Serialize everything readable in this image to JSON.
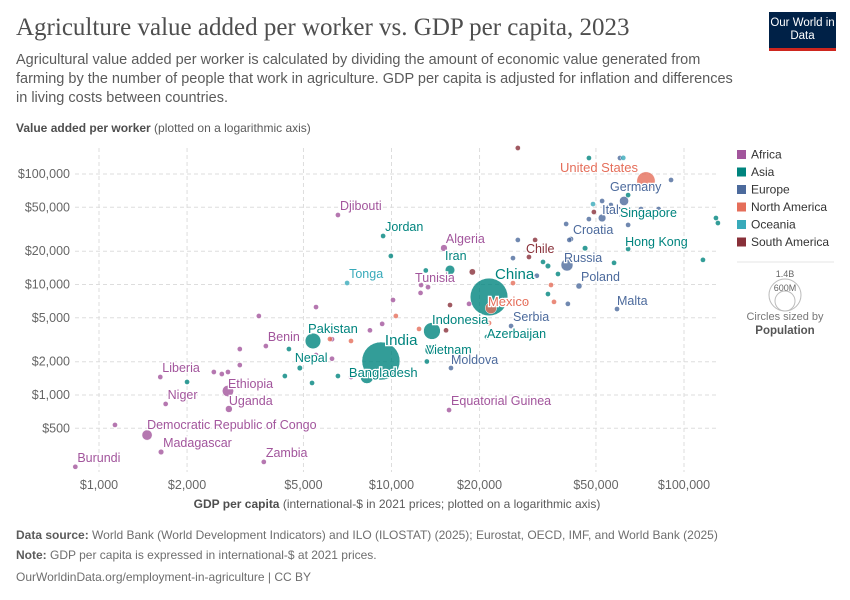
{
  "header": {
    "title": "Agriculture value added per worker vs. GDP per capita, 2023",
    "subtitle": "Agricultural value added per worker is calculated by dividing the amount of economic value generated from farming by the number of people that work in agriculture. GDP per capita is adjusted for inflation and differences in living costs between countries.",
    "logo": "Our World in Data"
  },
  "chart_data": {
    "type": "scatter",
    "title": "Agriculture value added per worker vs. GDP per capita, 2023",
    "ylabel_bold": "Value added per worker",
    "ylabel_rest": " (plotted on a logarithmic axis)",
    "xlabel_bold": "GDP per capita",
    "xlabel_rest": " (international-$ in 2021 prices; plotted on a logarithmic axis)",
    "x_scale": "log",
    "y_scale": "log",
    "xlim": [
      800,
      135000
    ],
    "ylim": [
      190,
      180000
    ],
    "grid": true,
    "x_ticks": [
      {
        "v": 1000,
        "label": "$1,000"
      },
      {
        "v": 2000,
        "label": "$2,000"
      },
      {
        "v": 5000,
        "label": "$5,000"
      },
      {
        "v": 10000,
        "label": "$10,000"
      },
      {
        "v": 20000,
        "label": "$20,000"
      },
      {
        "v": 50000,
        "label": "$50,000"
      },
      {
        "v": 100000,
        "label": "$100,000"
      }
    ],
    "y_ticks": [
      {
        "v": 500,
        "label": "$500"
      },
      {
        "v": 1000,
        "label": "$1,000"
      },
      {
        "v": 2000,
        "label": "$2,000"
      },
      {
        "v": 5000,
        "label": "$5,000"
      },
      {
        "v": 10000,
        "label": "$10,000"
      },
      {
        "v": 20000,
        "label": "$20,000"
      },
      {
        "v": 50000,
        "label": "$50,000"
      },
      {
        "v": 100000,
        "label": "$100,000"
      }
    ],
    "legend_position": "right",
    "regions": [
      {
        "name": "Africa",
        "color": "#a2559c"
      },
      {
        "name": "Asia",
        "color": "#00847e"
      },
      {
        "name": "Europe",
        "color": "#4c6a9c"
      },
      {
        "name": "North America",
        "color": "#e56e5a"
      },
      {
        "name": "Oceania",
        "color": "#38aaba"
      },
      {
        "name": "South America",
        "color": "#883039"
      }
    ],
    "size_legend": {
      "title": "Circles sized by",
      "variable": "Population",
      "large": "1.4B",
      "small": "600M"
    },
    "points": [
      {
        "label": "Burundi",
        "region": "Africa",
        "x": 830,
        "y": 224,
        "pop": 13
      },
      {
        "label": "Madagascar",
        "region": "Africa",
        "x": 1630,
        "y": 305,
        "pop": 31
      },
      {
        "label": "Democratic Republic of Congo",
        "region": "Africa",
        "x": 1460,
        "y": 434,
        "pop": 105
      },
      {
        "label": "Zambia",
        "region": "Africa",
        "x": 3660,
        "y": 248,
        "pop": 20
      },
      {
        "label": "Niger",
        "region": "Africa",
        "x": 1690,
        "y": 830,
        "pop": 27
      },
      {
        "label": "Liberia",
        "region": "Africa",
        "x": 1620,
        "y": 1455,
        "pop": 5
      },
      {
        "label": "Ethiopia",
        "region": "Africa",
        "x": 2760,
        "y": 1087,
        "pop": 128
      },
      {
        "label": "Uganda",
        "region": "Africa",
        "x": 2780,
        "y": 747,
        "pop": 48
      },
      {
        "label": "Benin",
        "region": "Africa",
        "x": 3720,
        "y": 2774,
        "pop": 14
      },
      {
        "label": "Pakistan",
        "region": "Asia",
        "x": 5390,
        "y": 3083,
        "pop": 245
      },
      {
        "label": "Nepal",
        "region": "Asia",
        "x": 4860,
        "y": 1755,
        "pop": 30
      },
      {
        "label": "India",
        "region": "Asia",
        "x": 9200,
        "y": 2030,
        "pop": 1440
      },
      {
        "label": "Bangladesh",
        "region": "Asia",
        "x": 8240,
        "y": 1455,
        "pop": 171
      },
      {
        "label": "Djibouti",
        "region": "Africa",
        "x": 6560,
        "y": 42560,
        "pop": 1.1
      },
      {
        "label": "Jordan",
        "region": "Asia",
        "x": 9360,
        "y": 27480,
        "pop": 11
      },
      {
        "label": "Tonga",
        "region": "Oceania",
        "x": 7050,
        "y": 10320,
        "pop": 0.1
      },
      {
        "label": "Algeria",
        "region": "Africa",
        "x": 15110,
        "y": 21390,
        "pop": 46
      },
      {
        "label": "Iran",
        "region": "Asia",
        "x": 15850,
        "y": 13520,
        "pop": 90
      },
      {
        "label": "Tunisia",
        "region": "Africa",
        "x": 12620,
        "y": 9890,
        "pop": 12
      },
      {
        "label": "China",
        "region": "Asia",
        "x": 21550,
        "y": 7710,
        "pop": 1410
      },
      {
        "label": "Mexico",
        "region": "North America",
        "x": 21880,
        "y": 6125,
        "pop": 130
      },
      {
        "label": "Indonesia",
        "region": "Asia",
        "x": 13750,
        "y": 3795,
        "pop": 280
      },
      {
        "label": "Vietnam",
        "region": "Asia",
        "x": 13540,
        "y": 2555,
        "pop": 100
      },
      {
        "label": "Azerbaijan",
        "region": "Asia",
        "x": 21200,
        "y": 3350,
        "pop": 10
      },
      {
        "label": "Serbia",
        "region": "Europe",
        "x": 25630,
        "y": 4210,
        "pop": 6.6
      },
      {
        "label": "Moldova",
        "region": "Europe",
        "x": 15970,
        "y": 1755,
        "pop": 2.5
      },
      {
        "label": "Equatorial Guinea",
        "region": "Africa",
        "x": 15730,
        "y": 731,
        "pop": 1.8
      },
      {
        "label": "Chile",
        "region": "South America",
        "x": 29510,
        "y": 17740,
        "pop": 20
      },
      {
        "label": "Croatia",
        "region": "Europe",
        "x": 41080,
        "y": 25820,
        "pop": 3.9
      },
      {
        "label": "Russia",
        "region": "Europe",
        "x": 39810,
        "y": 15010,
        "pop": 144
      },
      {
        "label": "Poland",
        "region": "Europe",
        "x": 43750,
        "y": 9690,
        "pop": 37
      },
      {
        "label": "Malta",
        "region": "Europe",
        "x": 59020,
        "y": 6000,
        "pop": 0.5
      },
      {
        "label": "Italy",
        "region": "Europe",
        "x": 52480,
        "y": 39980,
        "pop": 59
      },
      {
        "label": "Germany",
        "region": "Europe",
        "x": 62370,
        "y": 57020,
        "pop": 84
      },
      {
        "label": "United States",
        "region": "North America",
        "x": 74130,
        "y": 86450,
        "pop": 335
      },
      {
        "label": "Singapore",
        "region": "Asia",
        "x": 128600,
        "y": 39980,
        "pop": 6
      },
      {
        "label": "Hong Kong",
        "region": "Asia",
        "x": 64400,
        "y": 20960,
        "pop": 7.5
      },
      {
        "region": "South America",
        "x": 27040,
        "y": 172000,
        "pop": 3.4
      },
      {
        "region": "Africa",
        "x": 1134,
        "y": 536,
        "pop": 5
      },
      {
        "region": "Asia",
        "x": 2000,
        "y": 1312,
        "pop": 8
      },
      {
        "region": "Africa",
        "x": 2470,
        "y": 1615,
        "pop": 8
      },
      {
        "region": "Africa",
        "x": 2630,
        "y": 1549,
        "pop": 5
      },
      {
        "region": "Africa",
        "x": 2760,
        "y": 1615,
        "pop": 4
      },
      {
        "region": "Africa",
        "x": 3030,
        "y": 1867,
        "pop": 4
      },
      {
        "region": "Africa",
        "x": 3030,
        "y": 2606,
        "pop": 3
      },
      {
        "region": "Africa",
        "x": 3520,
        "y": 5190,
        "pop": 3
      },
      {
        "region": "Asia",
        "x": 4460,
        "y": 2606,
        "pop": 4
      },
      {
        "region": "Asia",
        "x": 4320,
        "y": 1485,
        "pop": 3
      },
      {
        "region": "Asia",
        "x": 5350,
        "y": 1285,
        "pop": 10
      },
      {
        "region": "Africa",
        "x": 5520,
        "y": 2300,
        "pop": 25
      },
      {
        "region": "Africa",
        "x": 5520,
        "y": 6250,
        "pop": 3
      },
      {
        "region": "North America",
        "x": 6160,
        "y": 3210,
        "pop": 3
      },
      {
        "region": "Africa",
        "x": 6260,
        "y": 3200,
        "pop": 8
      },
      {
        "region": "Africa",
        "x": 6260,
        "y": 2130,
        "pop": 5
      },
      {
        "region": "Asia",
        "x": 6560,
        "y": 1485,
        "pop": 4
      },
      {
        "region": "North America",
        "x": 7270,
        "y": 3083,
        "pop": 3
      },
      {
        "region": "Africa",
        "x": 7270,
        "y": 1455,
        "pop": 8
      },
      {
        "region": "Asia",
        "x": 9950,
        "y": 18110,
        "pop": 5
      },
      {
        "region": "Africa",
        "x": 8440,
        "y": 3850,
        "pop": 12
      },
      {
        "region": "Africa",
        "x": 9290,
        "y": 4400,
        "pop": 4
      },
      {
        "region": "Africa",
        "x": 10120,
        "y": 7240,
        "pop": 3
      },
      {
        "region": "North America",
        "x": 10350,
        "y": 5190,
        "pop": 3
      },
      {
        "region": "Africa",
        "x": 13330,
        "y": 9470,
        "pop": 3
      },
      {
        "region": "Africa",
        "x": 12570,
        "y": 8390,
        "pop": 4
      },
      {
        "region": "North America",
        "x": 12420,
        "y": 3960,
        "pop": 3
      },
      {
        "region": "South America",
        "x": 15360,
        "y": 3850,
        "pop": 6
      },
      {
        "region": "Asia",
        "x": 13210,
        "y": 2010,
        "pop": 5
      },
      {
        "region": "South America",
        "x": 15850,
        "y": 6520,
        "pop": 8
      },
      {
        "region": "Africa",
        "x": 18410,
        "y": 6680,
        "pop": 3
      },
      {
        "region": "North America",
        "x": 21550,
        "y": 4480,
        "pop": 3
      },
      {
        "region": "South America",
        "x": 18900,
        "y": 13000,
        "pop": 40
      },
      {
        "region": "Asia",
        "x": 13100,
        "y": 13400,
        "pop": 10
      },
      {
        "region": "Europe",
        "x": 26020,
        "y": 17340,
        "pop": 3
      },
      {
        "region": "Asia",
        "x": 32960,
        "y": 16000,
        "pop": 5
      },
      {
        "region": "Asia",
        "x": 34270,
        "y": 14700,
        "pop": 30
      },
      {
        "region": "Asia",
        "x": 37080,
        "y": 12450,
        "pop": 4
      },
      {
        "region": "Asia",
        "x": 57650,
        "y": 15700,
        "pop": 2
      },
      {
        "region": "Asia",
        "x": 116100,
        "y": 16700,
        "pop": 2
      },
      {
        "region": "Europe",
        "x": 31400,
        "y": 12000,
        "pop": 3
      },
      {
        "region": "North America",
        "x": 35100,
        "y": 9900,
        "pop": 3
      },
      {
        "region": "North America",
        "x": 26020,
        "y": 10300,
        "pop": 3
      },
      {
        "region": "Asia",
        "x": 34270,
        "y": 8200,
        "pop": 3
      },
      {
        "region": "North America",
        "x": 35940,
        "y": 6960,
        "pop": 3
      },
      {
        "region": "Europe",
        "x": 40090,
        "y": 6680,
        "pop": 2.5
      },
      {
        "region": "North America",
        "x": 29040,
        "y": 6680,
        "pop": 2.5
      },
      {
        "region": "Europe",
        "x": 27040,
        "y": 25300,
        "pop": 3
      },
      {
        "region": "South America",
        "x": 30970,
        "y": 25300,
        "pop": 3
      },
      {
        "region": "Europe",
        "x": 40550,
        "y": 25300,
        "pop": 3
      },
      {
        "region": "Asia",
        "x": 45900,
        "y": 21300,
        "pop": 30
      },
      {
        "region": "Europe",
        "x": 39540,
        "y": 35300,
        "pop": 4
      },
      {
        "region": "Europe",
        "x": 47300,
        "y": 39100,
        "pop": 20
      },
      {
        "region": "Europe",
        "x": 64400,
        "y": 34600,
        "pop": 3
      },
      {
        "region": "South America",
        "x": 49200,
        "y": 45300,
        "pop": 2
      },
      {
        "region": "Europe",
        "x": 52480,
        "y": 57000,
        "pop": 20
      },
      {
        "region": "Oceania",
        "x": 48860,
        "y": 53460,
        "pop": 3
      },
      {
        "region": "Europe",
        "x": 56230,
        "y": 52400,
        "pop": 3
      },
      {
        "region": "Asia",
        "x": 64400,
        "y": 64500,
        "pop": 5
      },
      {
        "region": "Europe",
        "x": 71290,
        "y": 48200,
        "pop": 3
      },
      {
        "region": "Asia",
        "x": 76560,
        "y": 45300,
        "pop": 3
      },
      {
        "region": "Europe",
        "x": 81900,
        "y": 48200,
        "pop": 3
      },
      {
        "region": "Asia",
        "x": 130600,
        "y": 36000,
        "pop": 3
      },
      {
        "region": "Asia",
        "x": 47320,
        "y": 139600,
        "pop": 2
      },
      {
        "region": "Europe",
        "x": 60400,
        "y": 139600,
        "pop": 2
      },
      {
        "region": "Oceania",
        "x": 62000,
        "y": 140000,
        "pop": 2
      },
      {
        "region": "Europe",
        "x": 66990,
        "y": 111000,
        "pop": 3
      },
      {
        "region": "Europe",
        "x": 90300,
        "y": 88300,
        "pop": 2.5
      }
    ]
  },
  "footer": {
    "source_label": "Data source:",
    "source": " World Bank (World Development Indicators) and ILO (ILOSTAT) (2025); Eurostat, OECD, IMF, and World Bank (2025)",
    "note_label": "Note:",
    "note": " GDP per capita is expressed in international-$ at 2021 prices.",
    "url": "OurWorldinData.org/employment-in-agriculture | CC BY"
  }
}
